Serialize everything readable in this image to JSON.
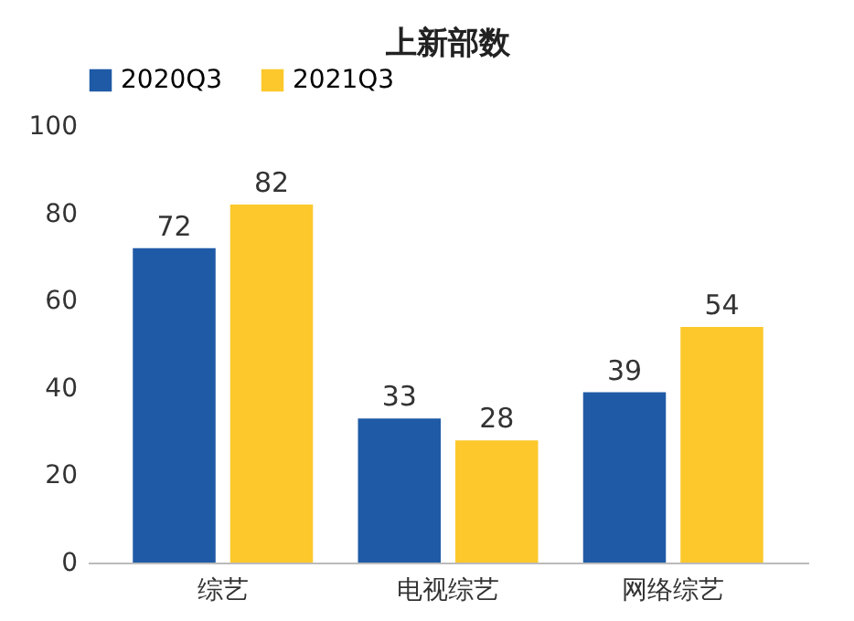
{
  "chart_data": {
    "type": "bar",
    "title": "上新部数",
    "categories": [
      "综艺",
      "电视综艺",
      "网络综艺"
    ],
    "series": [
      {
        "name": "2020Q3",
        "color": "#1f5aa6",
        "values": [
          72,
          33,
          39
        ]
      },
      {
        "name": "2021Q3",
        "color": "#fcc82c",
        "values": [
          82,
          28,
          54
        ]
      }
    ],
    "ylim": [
      0,
      100
    ],
    "yticks": [
      0,
      20,
      40,
      60,
      80,
      100
    ],
    "grid": false,
    "legend": "top",
    "data_labels": true
  }
}
